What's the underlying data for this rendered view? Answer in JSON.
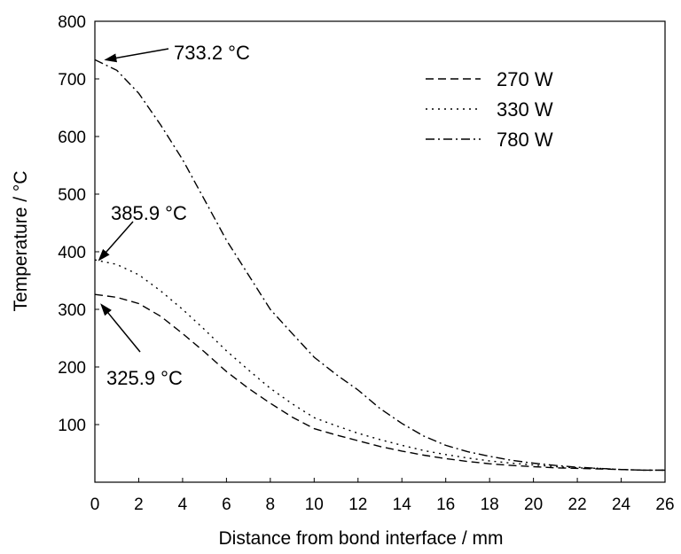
{
  "chart_data": {
    "type": "line",
    "title": "",
    "xlabel": "Distance from bond interface / mm",
    "ylabel": "Temperature / °C",
    "xlim": [
      0,
      26
    ],
    "ylim": [
      0,
      800
    ],
    "x_ticks": [
      "0",
      "2",
      "4",
      "6",
      "8",
      "10",
      "12",
      "14",
      "16",
      "18",
      "20",
      "22",
      "24",
      "26"
    ],
    "y_ticks": [
      "100",
      "200",
      "300",
      "400",
      "500",
      "600",
      "700",
      "800"
    ],
    "grid": false,
    "legend_position": "top-right",
    "series": [
      {
        "name": "270 W",
        "line_style": "dashed",
        "points": [
          [
            0,
            325.9
          ],
          [
            1,
            321
          ],
          [
            2,
            310
          ],
          [
            3,
            288
          ],
          [
            4,
            258
          ],
          [
            5,
            226
          ],
          [
            6,
            192
          ],
          [
            7,
            163
          ],
          [
            8,
            137
          ],
          [
            9,
            113
          ],
          [
            10,
            93
          ],
          [
            11,
            82
          ],
          [
            12,
            72
          ],
          [
            13,
            62
          ],
          [
            14,
            54
          ],
          [
            15,
            47
          ],
          [
            16,
            41
          ],
          [
            17,
            36
          ],
          [
            18,
            32
          ],
          [
            19,
            29
          ],
          [
            20,
            27
          ],
          [
            21,
            25
          ],
          [
            22,
            24
          ],
          [
            23,
            23
          ],
          [
            24,
            22
          ],
          [
            25,
            21
          ],
          [
            26,
            21
          ]
        ]
      },
      {
        "name": "330 W",
        "line_style": "dotted",
        "points": [
          [
            0,
            385.9
          ],
          [
            1,
            378
          ],
          [
            2,
            360
          ],
          [
            3,
            332
          ],
          [
            4,
            300
          ],
          [
            5,
            265
          ],
          [
            6,
            228
          ],
          [
            7,
            195
          ],
          [
            8,
            163
          ],
          [
            9,
            136
          ],
          [
            10,
            112
          ],
          [
            11,
            98
          ],
          [
            12,
            85
          ],
          [
            13,
            74
          ],
          [
            14,
            64
          ],
          [
            15,
            55
          ],
          [
            16,
            48
          ],
          [
            17,
            42
          ],
          [
            18,
            37
          ],
          [
            19,
            33
          ],
          [
            20,
            30
          ],
          [
            21,
            27
          ],
          [
            22,
            25
          ],
          [
            23,
            24
          ],
          [
            24,
            22
          ],
          [
            25,
            21
          ],
          [
            26,
            21
          ]
        ]
      },
      {
        "name": "780 W",
        "line_style": "dash-dot",
        "points": [
          [
            0,
            733.2
          ],
          [
            1,
            715
          ],
          [
            2,
            675
          ],
          [
            3,
            620
          ],
          [
            4,
            560
          ],
          [
            5,
            490
          ],
          [
            6,
            420
          ],
          [
            7,
            360
          ],
          [
            8,
            300
          ],
          [
            9,
            258
          ],
          [
            10,
            217
          ],
          [
            11,
            187
          ],
          [
            12,
            160
          ],
          [
            13,
            128
          ],
          [
            14,
            102
          ],
          [
            15,
            80
          ],
          [
            16,
            64
          ],
          [
            17,
            53
          ],
          [
            18,
            45
          ],
          [
            19,
            38
          ],
          [
            20,
            33
          ],
          [
            21,
            29
          ],
          [
            22,
            26
          ],
          [
            23,
            24
          ],
          [
            24,
            22
          ],
          [
            25,
            21
          ],
          [
            26,
            21
          ]
        ]
      }
    ],
    "annotations": [
      {
        "text": "733.2 °C",
        "point": [
          0.5,
          733.2
        ]
      },
      {
        "text": "385.9 °C",
        "point": [
          0.2,
          385.9
        ]
      },
      {
        "text": "325.9 °C",
        "point": [
          0.3,
          308
        ]
      }
    ]
  }
}
